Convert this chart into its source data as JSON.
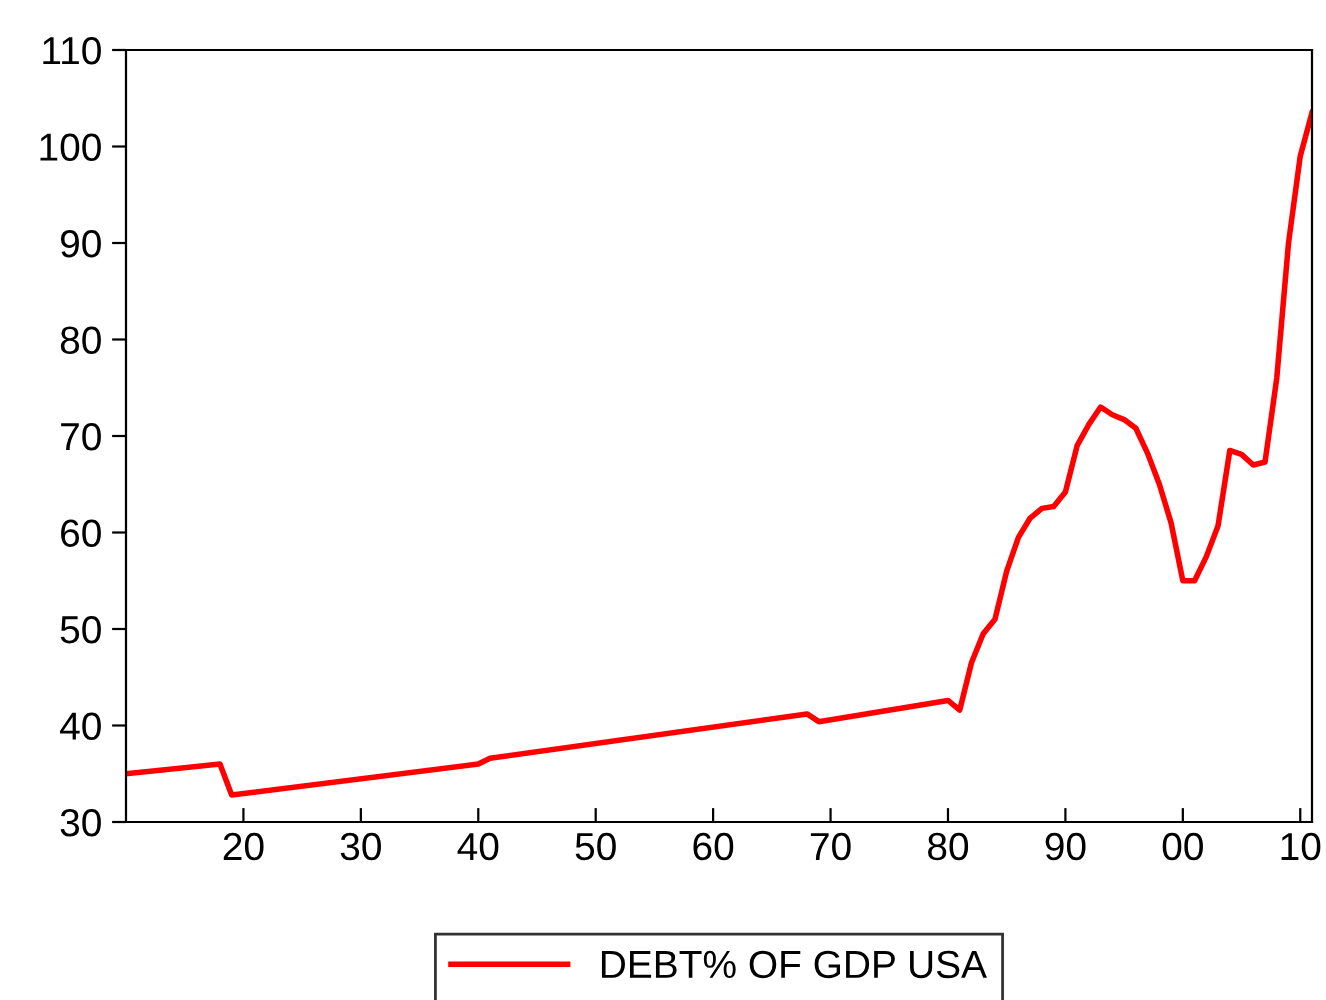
{
  "chart_data": {
    "type": "line",
    "x": [
      1910,
      1918,
      1919,
      1940,
      1941,
      1968,
      1969,
      1980,
      1981,
      1982,
      1983,
      1984,
      1985,
      1986,
      1987,
      1988,
      1989,
      1990,
      1991,
      1992,
      1993,
      1994,
      1995,
      1996,
      1997,
      1998,
      1999,
      2000,
      2001,
      2002,
      2003,
      2004,
      2005,
      2006,
      2007,
      2008,
      2009,
      2010,
      2011
    ],
    "series": [
      {
        "name": "DEBT% OF GDP USA",
        "color": "#ff0000",
        "values": [
          35,
          36,
          32.8,
          36,
          36.6,
          41.2,
          40.4,
          42.6,
          41.6,
          46.5,
          49.5,
          51,
          56,
          59.5,
          61.5,
          62.5,
          62.7,
          64.2,
          69,
          71.2,
          73,
          72.2,
          71.7,
          70.8,
          68.2,
          65,
          61,
          55,
          55,
          57.5,
          60.7,
          68.5,
          68.1,
          67,
          67.3,
          76,
          90,
          99,
          103.5
        ]
      }
    ],
    "xlim": [
      1910,
      2011
    ],
    "xticks": [
      {
        "value": 1920,
        "label": "20"
      },
      {
        "value": 1930,
        "label": "30"
      },
      {
        "value": 1940,
        "label": "40"
      },
      {
        "value": 1950,
        "label": "50"
      },
      {
        "value": 1960,
        "label": "60"
      },
      {
        "value": 1970,
        "label": "70"
      },
      {
        "value": 1980,
        "label": "80"
      },
      {
        "value": 1990,
        "label": "90"
      },
      {
        "value": 2000,
        "label": "00"
      },
      {
        "value": 2010,
        "label": "10"
      }
    ],
    "ylim": [
      30,
      110
    ],
    "yticks": [
      30,
      40,
      50,
      60,
      70,
      80,
      90,
      100,
      110
    ],
    "grid": false,
    "legend": "bottom",
    "marker": "none",
    "line_style": "solid"
  }
}
